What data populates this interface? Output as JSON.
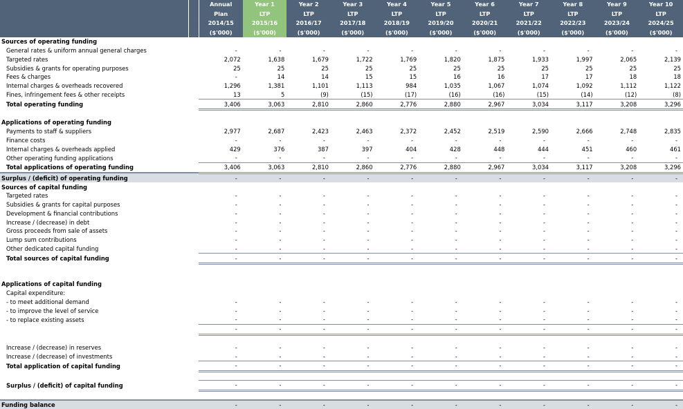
{
  "header": {
    "columns": [
      {
        "top": "Annual",
        "mid": "Plan",
        "year": "2014/15",
        "unit": "($'000)",
        "highlight": false
      },
      {
        "top": "Year 1",
        "mid": "LTP",
        "year": "2015/16",
        "unit": "($'000)",
        "highlight": true
      },
      {
        "top": "Year 2",
        "mid": "LTP",
        "year": "2016/17",
        "unit": "($'000)",
        "highlight": false
      },
      {
        "top": "Year 3",
        "mid": "LTP",
        "year": "2017/18",
        "unit": "($'000)",
        "highlight": false
      },
      {
        "top": "Year 4",
        "mid": "LTP",
        "year": "2018/19",
        "unit": "($'000)",
        "highlight": false
      },
      {
        "top": "Year 5",
        "mid": "LTP",
        "year": "2019/20",
        "unit": "($'000)",
        "highlight": false
      },
      {
        "top": "Year 6",
        "mid": "LTP",
        "year": "2020/21",
        "unit": "($'000)",
        "highlight": false
      },
      {
        "top": "Year 7",
        "mid": "LTP",
        "year": "2021/22",
        "unit": "($'000)",
        "highlight": false
      },
      {
        "top": "Year 8",
        "mid": "LTP",
        "year": "2022/23",
        "unit": "($'000)",
        "highlight": false
      },
      {
        "top": "Year 9",
        "mid": "LTP",
        "year": "2023/24",
        "unit": "($'000)",
        "highlight": false
      },
      {
        "top": "Year 10",
        "mid": "LTP",
        "year": "2024/25",
        "unit": "($'000)",
        "highlight": false
      }
    ]
  },
  "rows": [
    {
      "type": "section",
      "label": "Sources of operating funding",
      "values": [
        "",
        "",
        "",
        "",
        "",
        "",
        "",
        "",
        "",
        "",
        ""
      ]
    },
    {
      "type": "item",
      "label": "General rates & uniform annual general charges",
      "values": [
        "-",
        "-",
        "-",
        "-",
        "-",
        "-",
        "-",
        "-",
        "-",
        "-",
        "-"
      ]
    },
    {
      "type": "item",
      "label": "Targeted rates",
      "values": [
        "2,072",
        "1,638",
        "1,679",
        "1,722",
        "1,769",
        "1,820",
        "1,875",
        "1,933",
        "1,997",
        "2,065",
        "2,139"
      ]
    },
    {
      "type": "item",
      "label": "Subsidies & grants for operating purposes",
      "values": [
        "25",
        "25",
        "25",
        "25",
        "25",
        "25",
        "25",
        "25",
        "25",
        "25",
        "25"
      ]
    },
    {
      "type": "item",
      "label": "Fees & charges",
      "values": [
        "-",
        "14",
        "14",
        "15",
        "15",
        "16",
        "16",
        "17",
        "17",
        "18",
        "18"
      ]
    },
    {
      "type": "item",
      "label": "Internal charges & overheads recovered",
      "values": [
        "1,296",
        "1,381",
        "1,101",
        "1,113",
        "984",
        "1,035",
        "1,067",
        "1,074",
        "1,092",
        "1,112",
        "1,122"
      ]
    },
    {
      "type": "item",
      "label": "Fines, infringement fees & other receipts",
      "values": [
        "13",
        "5",
        "(9)",
        "(15)",
        "(17)",
        "(16)",
        "(16)",
        "(15)",
        "(14)",
        "(12)",
        "(8)"
      ]
    },
    {
      "type": "total",
      "label": "Total operating funding",
      "values": [
        "3,406",
        "3,063",
        "2,810",
        "2,860",
        "2,776",
        "2,880",
        "2,967",
        "3,034",
        "3,117",
        "3,208",
        "3,296"
      ]
    },
    {
      "type": "spacer",
      "label": "",
      "values": [
        "",
        "",
        "",
        "",
        "",
        "",
        "",
        "",
        "",
        "",
        ""
      ]
    },
    {
      "type": "section",
      "label": "Applications of operating funding",
      "values": [
        "",
        "",
        "",
        "",
        "",
        "",
        "",
        "",
        "",
        "",
        ""
      ]
    },
    {
      "type": "item",
      "label": "Payments to staff & suppliers",
      "values": [
        "2,977",
        "2,687",
        "2,423",
        "2,463",
        "2,372",
        "2,452",
        "2,519",
        "2,590",
        "2,666",
        "2,748",
        "2,835"
      ]
    },
    {
      "type": "item",
      "label": "Finance costs",
      "values": [
        "-",
        "-",
        "-",
        "-",
        "-",
        "-",
        "-",
        "-",
        "-",
        "-",
        "-"
      ]
    },
    {
      "type": "item",
      "label": "Internal charges & overheads applied",
      "values": [
        "429",
        "376",
        "387",
        "397",
        "404",
        "428",
        "448",
        "444",
        "451",
        "460",
        "461"
      ]
    },
    {
      "type": "item",
      "label": "Other operating funding applications",
      "values": [
        "-",
        "-",
        "-",
        "-",
        "-",
        "-",
        "-",
        "-",
        "-",
        "-",
        "-"
      ]
    },
    {
      "type": "total",
      "label": "Total applications of operating funding",
      "values": [
        "3,406",
        "3,063",
        "2,810",
        "2,860",
        "2,776",
        "2,880",
        "2,967",
        "3,034",
        "3,117",
        "3,208",
        "3,296"
      ]
    },
    {
      "type": "band",
      "label": "Surplus / (deficit) of operating funding",
      "values": [
        "-",
        "-",
        "-",
        "-",
        "-",
        "-",
        "-",
        "-",
        "-",
        "-",
        "-"
      ]
    },
    {
      "type": "section",
      "label": "Sources of capital funding",
      "values": [
        "",
        "",
        "",
        "",
        "",
        "",
        "",
        "",
        "",
        "",
        ""
      ]
    },
    {
      "type": "item",
      "label": "Targeted rates",
      "values": [
        "-",
        "-",
        "-",
        "-",
        "-",
        "-",
        "-",
        "-",
        "-",
        "-",
        "-"
      ]
    },
    {
      "type": "item",
      "label": "Subsidies & grants for capital purposes",
      "values": [
        "-",
        "-",
        "-",
        "-",
        "-",
        "-",
        "-",
        "-",
        "-",
        "-",
        "-"
      ]
    },
    {
      "type": "item",
      "label": "Development & financial contributions",
      "values": [
        "-",
        "-",
        "-",
        "-",
        "-",
        "-",
        "-",
        "-",
        "-",
        "-",
        "-"
      ]
    },
    {
      "type": "item",
      "label": "Increase / (decrease) in debt",
      "values": [
        "-",
        "-",
        "-",
        "-",
        "-",
        "-",
        "-",
        "-",
        "-",
        "-",
        "-"
      ]
    },
    {
      "type": "item",
      "label": "Gross proceeds from sale of assets",
      "values": [
        "-",
        "-",
        "-",
        "-",
        "-",
        "-",
        "-",
        "-",
        "-",
        "-",
        "-"
      ]
    },
    {
      "type": "item",
      "label": "Lump sum contributions",
      "values": [
        "-",
        "-",
        "-",
        "-",
        "-",
        "-",
        "-",
        "-",
        "-",
        "-",
        "-"
      ]
    },
    {
      "type": "item",
      "label": "Other dedicated capital funding",
      "values": [
        "-",
        "-",
        "-",
        "-",
        "-",
        "-",
        "-",
        "-",
        "-",
        "-",
        "-"
      ]
    },
    {
      "type": "total",
      "label": "Total sources of capital funding",
      "values": [
        "-",
        "-",
        "-",
        "-",
        "-",
        "-",
        "-",
        "-",
        "-",
        "-",
        "-"
      ]
    },
    {
      "type": "spacer",
      "label": "",
      "values": [
        "",
        "",
        "",
        "",
        "",
        "",
        "",
        "",
        "",
        "",
        ""
      ]
    },
    {
      "type": "spacer",
      "label": "",
      "values": [
        "",
        "",
        "",
        "",
        "",
        "",
        "",
        "",
        "",
        "",
        ""
      ]
    },
    {
      "type": "section",
      "label": "Applications of capital funding",
      "values": [
        "",
        "",
        "",
        "",
        "",
        "",
        "",
        "",
        "",
        "",
        ""
      ]
    },
    {
      "type": "item",
      "label": "Capital expenditure:",
      "values": [
        "",
        "",
        "",
        "",
        "",
        "",
        "",
        "",
        "",
        "",
        ""
      ]
    },
    {
      "type": "item",
      "label": "- to meet additional demand",
      "values": [
        "-",
        "-",
        "-",
        "-",
        "-",
        "-",
        "-",
        "-",
        "-",
        "-",
        "-"
      ]
    },
    {
      "type": "item",
      "label": "- to improve the level of service",
      "values": [
        "-",
        "-",
        "-",
        "-",
        "-",
        "-",
        "-",
        "-",
        "-",
        "-",
        "-"
      ]
    },
    {
      "type": "item",
      "label": "- to replace existing assets",
      "values": [
        "-",
        "-",
        "-",
        "-",
        "-",
        "-",
        "-",
        "-",
        "-",
        "-",
        "-"
      ]
    },
    {
      "type": "totline",
      "label": "",
      "values": [
        "-",
        "-",
        "-",
        "-",
        "-",
        "-",
        "-",
        "-",
        "-",
        "-",
        "-"
      ]
    },
    {
      "type": "spacer",
      "label": "",
      "values": [
        "",
        "",
        "",
        "",
        "",
        "",
        "",
        "",
        "",
        "",
        ""
      ]
    },
    {
      "type": "item",
      "label": "Increase / (decrease) in reserves",
      "values": [
        "-",
        "-",
        "-",
        "-",
        "-",
        "-",
        "-",
        "-",
        "-",
        "-",
        "-"
      ]
    },
    {
      "type": "item",
      "label": "Increase / (decrease) of investments",
      "values": [
        "-",
        "-",
        "-",
        "-",
        "-",
        "-",
        "-",
        "-",
        "-",
        "-",
        "-"
      ]
    },
    {
      "type": "total",
      "label": "Total application of capital funding",
      "values": [
        "-",
        "-",
        "-",
        "-",
        "-",
        "-",
        "-",
        "-",
        "-",
        "-",
        "-"
      ]
    },
    {
      "type": "spacer",
      "label": "",
      "values": [
        "",
        "",
        "",
        "",
        "",
        "",
        "",
        "",
        "",
        "",
        ""
      ]
    },
    {
      "type": "total",
      "label": "Surplus / (deficit) of capital funding",
      "values": [
        "-",
        "-",
        "-",
        "-",
        "-",
        "-",
        "-",
        "-",
        "-",
        "-",
        "-"
      ]
    },
    {
      "type": "spacer",
      "label": "",
      "values": [
        "",
        "",
        "",
        "",
        "",
        "",
        "",
        "",
        "",
        "",
        ""
      ]
    },
    {
      "type": "band",
      "label": "Funding balance",
      "values": [
        "-",
        "-",
        "-",
        "-",
        "-",
        "-",
        "-",
        "-",
        "-",
        "-",
        "-"
      ]
    }
  ]
}
